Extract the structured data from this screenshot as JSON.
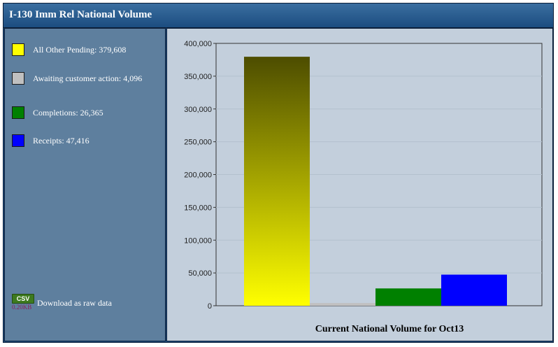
{
  "window": {
    "title": "I-130 Imm Rel National Volume"
  },
  "legend": [
    {
      "label": "All Other Pending: 379,608",
      "color": "#ffff00"
    },
    {
      "label": "Awaiting customer action: 4,096",
      "color": "#c0c0c0"
    },
    {
      "label": "Completions: 26,365",
      "color": "#008000"
    },
    {
      "label": "Receipts: 47,416",
      "color": "#0000ff"
    }
  ],
  "download": {
    "badge": "CSV",
    "size": "0.20KB",
    "label": "Download as raw data"
  },
  "chart_data": {
    "type": "bar",
    "title": "",
    "xlabel": "Current National Volume for Oct13",
    "ylabel": "",
    "ylim": [
      0,
      400000
    ],
    "yticks": [
      "0",
      "50,000",
      "100,000",
      "150,000",
      "200,000",
      "250,000",
      "300,000",
      "350,000",
      "400,000"
    ],
    "grid": true,
    "series": [
      {
        "name": "All Other Pending",
        "values": [
          379608
        ],
        "color": "#ffff00",
        "gradient_top": "#4d4d00"
      },
      {
        "name": "Awaiting customer action",
        "values": [
          4096
        ],
        "color": "#c0c0c0"
      },
      {
        "name": "Completions",
        "values": [
          26365
        ],
        "color": "#008000"
      },
      {
        "name": "Receipts",
        "values": [
          47416
        ],
        "color": "#0000ff"
      }
    ]
  }
}
